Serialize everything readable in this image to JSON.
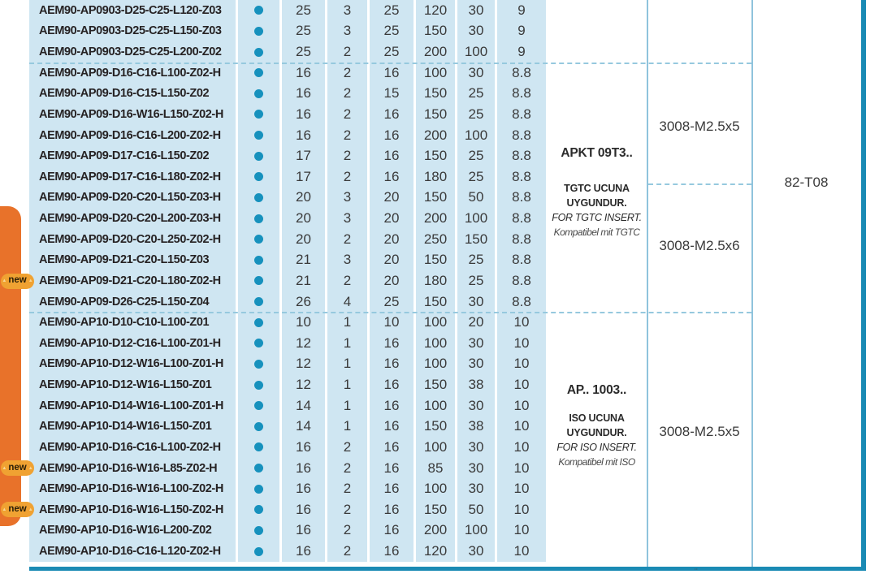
{
  "labels": {
    "new_badge": "new"
  },
  "icons": {
    "stock_dot": "filled-circle"
  },
  "colors": {
    "accent_orange": "#e8722a",
    "table_cell_blue": "#cfe6f2",
    "stock_dot_teal": "#1691bd",
    "table_border_teal": "#1a8ab4",
    "badge_gold": "#f0a232"
  },
  "rows": [
    {
      "code": "AEM90-AP0903-D25-C25-L120-Z03",
      "new": false,
      "values": [
        "25",
        "3",
        "25",
        "120",
        "30",
        "9"
      ]
    },
    {
      "code": "AEM90-AP0903-D25-C25-L150-Z03",
      "new": false,
      "values": [
        "25",
        "3",
        "25",
        "150",
        "30",
        "9"
      ]
    },
    {
      "code": "AEM90-AP0903-D25-C25-L200-Z02",
      "new": false,
      "values": [
        "25",
        "2",
        "25",
        "200",
        "100",
        "9"
      ]
    },
    {
      "code": "AEM90-AP09-D16-C16-L100-Z02-H",
      "new": false,
      "values": [
        "16",
        "2",
        "16",
        "100",
        "30",
        "8.8"
      ]
    },
    {
      "code": "AEM90-AP09-D16-C15-L150-Z02",
      "new": false,
      "values": [
        "16",
        "2",
        "15",
        "150",
        "25",
        "8.8"
      ]
    },
    {
      "code": "AEM90-AP09-D16-W16-L150-Z02-H",
      "new": false,
      "values": [
        "16",
        "2",
        "16",
        "150",
        "25",
        "8.8"
      ]
    },
    {
      "code": "AEM90-AP09-D16-C16-L200-Z02-H",
      "new": false,
      "values": [
        "16",
        "2",
        "16",
        "200",
        "100",
        "8.8"
      ]
    },
    {
      "code": "AEM90-AP09-D17-C16-L150-Z02",
      "new": false,
      "values": [
        "17",
        "2",
        "16",
        "150",
        "25",
        "8.8"
      ]
    },
    {
      "code": "AEM90-AP09-D17-C16-L180-Z02-H",
      "new": false,
      "values": [
        "17",
        "2",
        "16",
        "180",
        "25",
        "8.8"
      ]
    },
    {
      "code": "AEM90-AP09-D20-C20-L150-Z03-H",
      "new": false,
      "values": [
        "20",
        "3",
        "20",
        "150",
        "50",
        "8.8"
      ]
    },
    {
      "code": "AEM90-AP09-D20-C20-L200-Z03-H",
      "new": false,
      "values": [
        "20",
        "3",
        "20",
        "200",
        "100",
        "8.8"
      ]
    },
    {
      "code": "AEM90-AP09-D20-C20-L250-Z02-H",
      "new": false,
      "values": [
        "20",
        "2",
        "20",
        "250",
        "150",
        "8.8"
      ]
    },
    {
      "code": "AEM90-AP09-D21-C20-L150-Z03",
      "new": false,
      "values": [
        "21",
        "3",
        "20",
        "150",
        "25",
        "8.8"
      ]
    },
    {
      "code": "AEM90-AP09-D21-C20-L180-Z02-H",
      "new": true,
      "values": [
        "21",
        "2",
        "20",
        "180",
        "25",
        "8.8"
      ]
    },
    {
      "code": "AEM90-AP09-D26-C25-L150-Z04",
      "new": false,
      "values": [
        "26",
        "4",
        "25",
        "150",
        "30",
        "8.8"
      ]
    },
    {
      "code": "AEM90-AP10-D10-C10-L100-Z01",
      "new": false,
      "values": [
        "10",
        "1",
        "10",
        "100",
        "20",
        "10"
      ]
    },
    {
      "code": "AEM90-AP10-D12-C16-L100-Z01-H",
      "new": false,
      "values": [
        "12",
        "1",
        "16",
        "100",
        "30",
        "10"
      ]
    },
    {
      "code": "AEM90-AP10-D12-W16-L100-Z01-H",
      "new": false,
      "values": [
        "12",
        "1",
        "16",
        "100",
        "30",
        "10"
      ]
    },
    {
      "code": "AEM90-AP10-D12-W16-L150-Z01",
      "new": false,
      "values": [
        "12",
        "1",
        "16",
        "150",
        "38",
        "10"
      ]
    },
    {
      "code": "AEM90-AP10-D14-W16-L100-Z01-H",
      "new": false,
      "values": [
        "14",
        "1",
        "16",
        "100",
        "30",
        "10"
      ]
    },
    {
      "code": "AEM90-AP10-D14-W16-L150-Z01",
      "new": false,
      "values": [
        "14",
        "1",
        "16",
        "150",
        "38",
        "10"
      ]
    },
    {
      "code": "AEM90-AP10-D16-C16-L100-Z02-H",
      "new": false,
      "values": [
        "16",
        "2",
        "16",
        "100",
        "30",
        "10"
      ]
    },
    {
      "code": "AEM90-AP10-D16-W16-L85-Z02-H",
      "new": true,
      "values": [
        "16",
        "2",
        "16",
        "85",
        "30",
        "10"
      ]
    },
    {
      "code": "AEM90-AP10-D16-W16-L100-Z02-H",
      "new": false,
      "values": [
        "16",
        "2",
        "16",
        "100",
        "30",
        "10"
      ]
    },
    {
      "code": "AEM90-AP10-D16-W16-L150-Z02-H",
      "new": true,
      "values": [
        "16",
        "2",
        "16",
        "150",
        "50",
        "10"
      ]
    },
    {
      "code": "AEM90-AP10-D16-W16-L200-Z02",
      "new": false,
      "values": [
        "16",
        "2",
        "16",
        "200",
        "100",
        "10"
      ]
    },
    {
      "code": "AEM90-AP10-D16-C16-L120-Z02-H",
      "new": false,
      "values": [
        "16",
        "2",
        "16",
        "120",
        "30",
        "10"
      ]
    }
  ],
  "groups": {
    "ap09": {
      "insert_code": "APKT 09T3..",
      "note_line1": "TGTC UCUNA",
      "note_line2": "UYGUNDUR.",
      "note_line3": "FOR TGTC INSERT.",
      "note_line4": "Kompatibel mit TGTC",
      "screw_top": "3008-M2.5x5",
      "screw_bottom": "3008-M2.5x6"
    },
    "ap10": {
      "insert_code": "AP.. 1003..",
      "note_line1": "ISO UCUNA",
      "note_line2": "UYGUNDUR.",
      "note_line3": "FOR ISO INSERT.",
      "note_line4": "Kompatibel mit ISO",
      "screw": "3008-M2.5x5"
    }
  },
  "key_code": "82-T08",
  "page_mark": "¨"
}
